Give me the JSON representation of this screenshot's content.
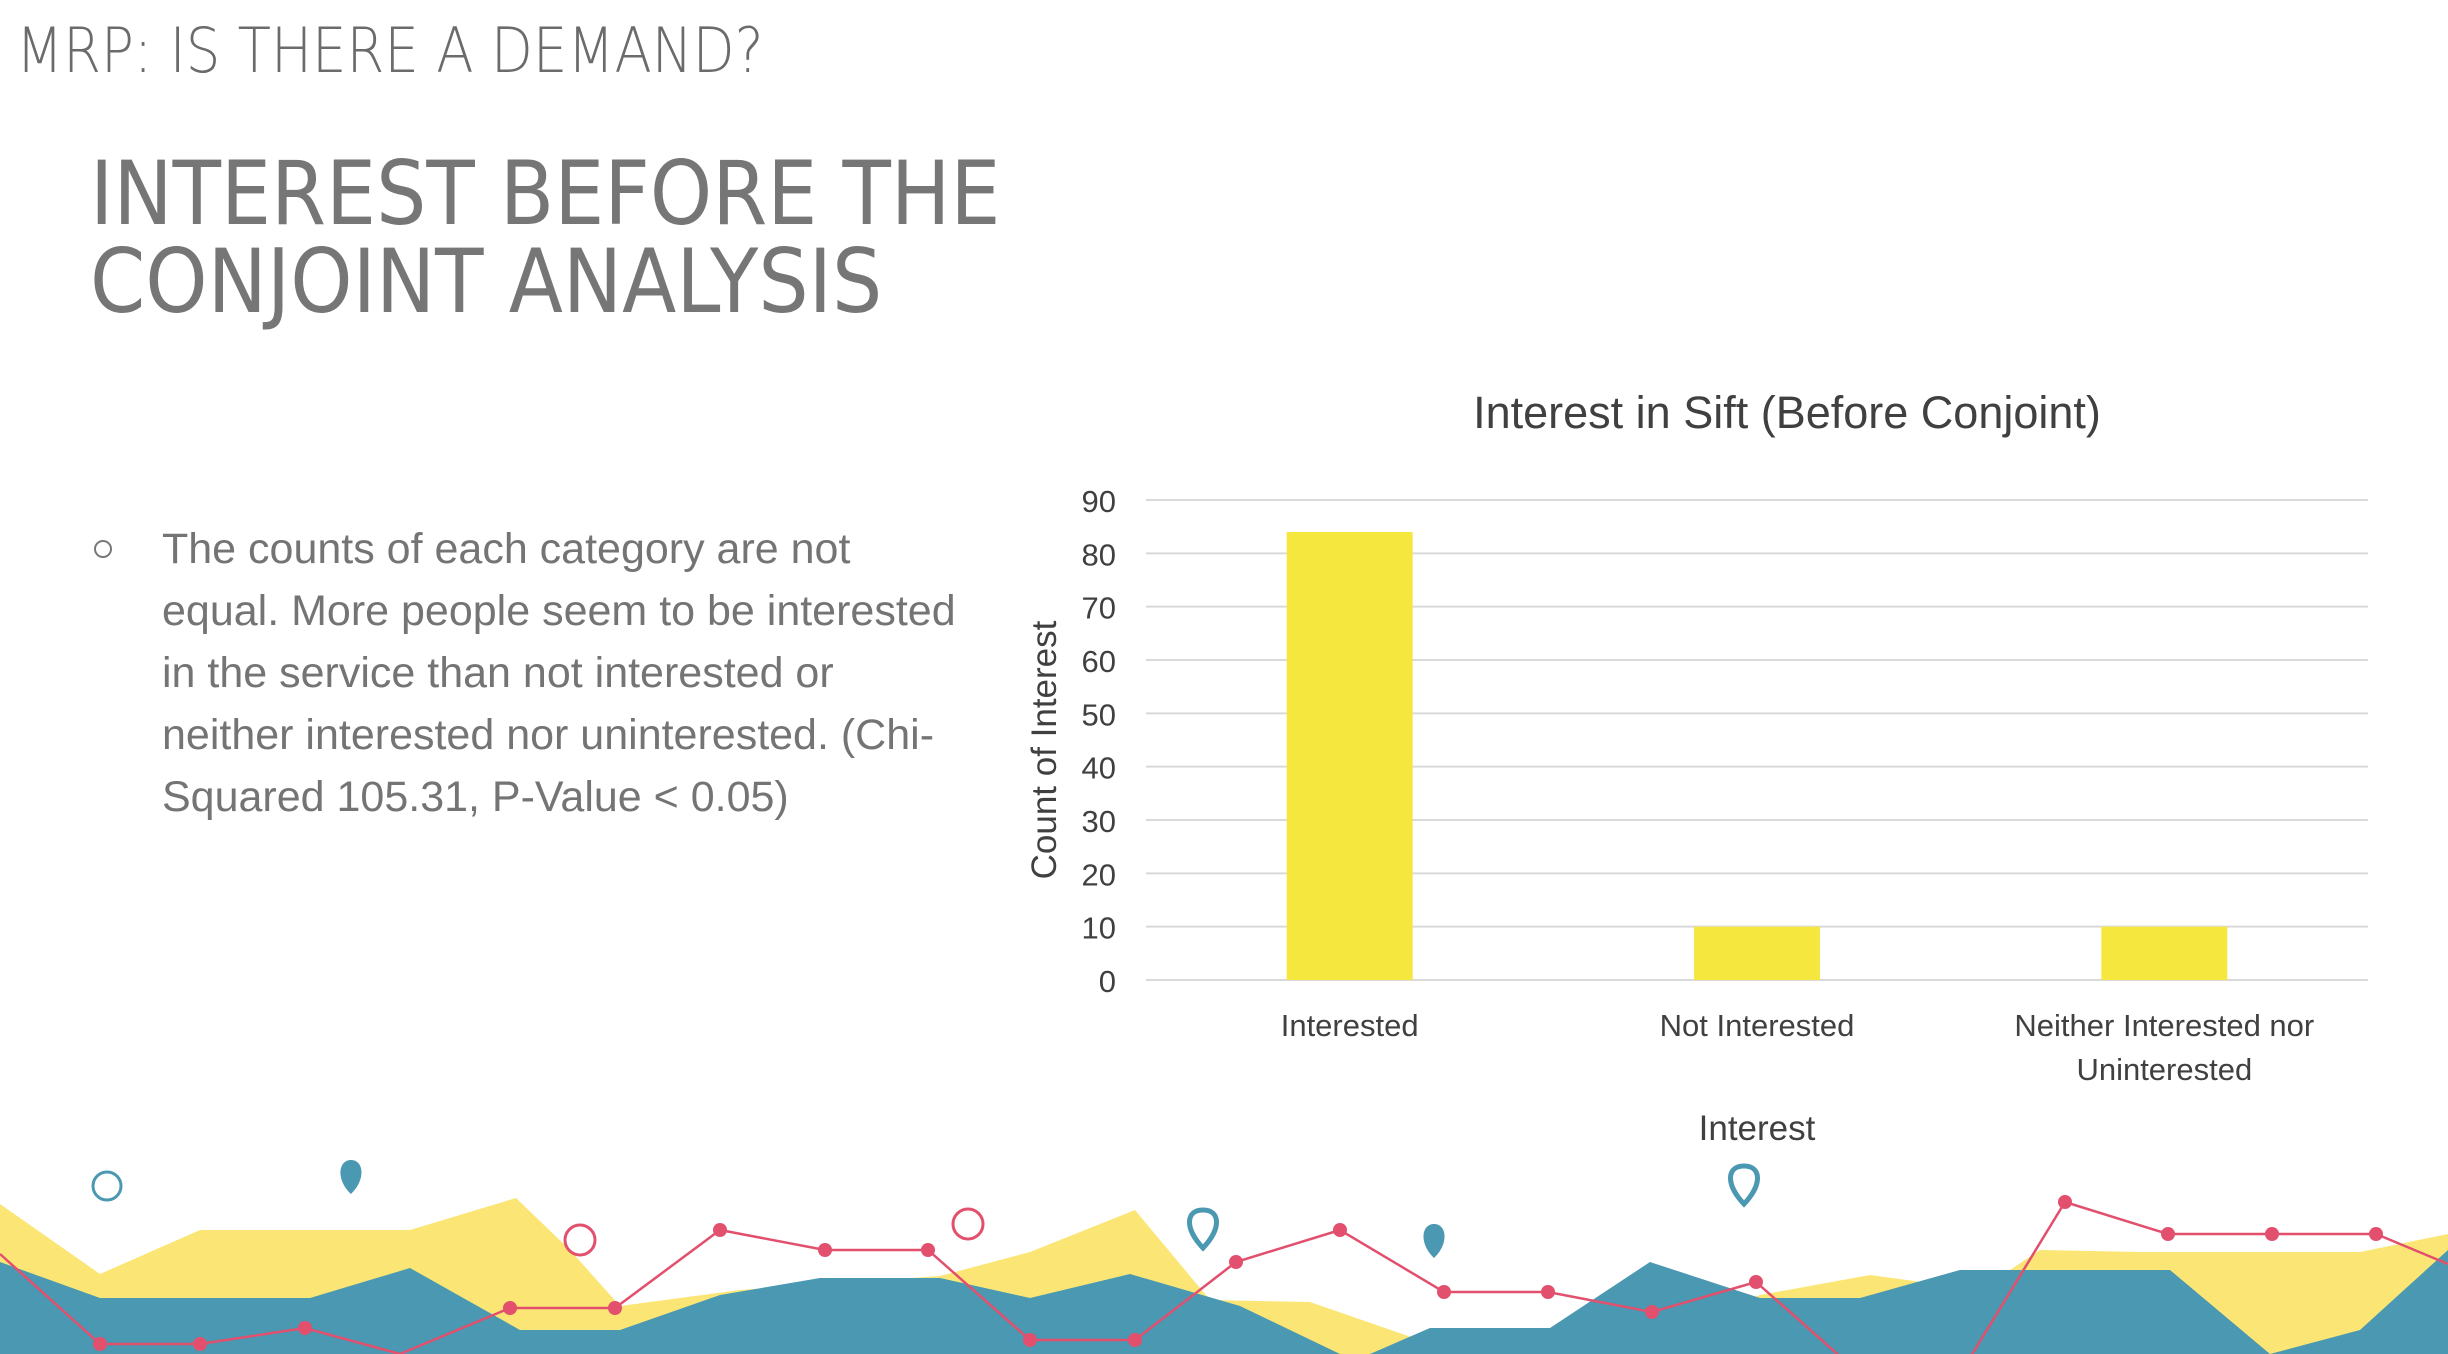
{
  "slide": {
    "kicker": "MRP: IS THERE A DEMAND?",
    "title_line1": "INTEREST BEFORE THE",
    "title_line2": "CONJOINT ANALYSIS",
    "bullet": "The counts of each category are not equal. More people seem to be interested in the service than not interested or neither interested nor uninterested. (Chi-Squared 105.31, P-Value < 0.05)"
  },
  "colors": {
    "bar": "#f5e73d",
    "grid": "#d9d9d9",
    "text": "#404040",
    "deco_yellow": "#fbe675",
    "deco_teal": "#4a98b1",
    "deco_pink": "#e2506e"
  },
  "chart_data": {
    "type": "bar",
    "title": "Interest in Sift (Before Conjoint)",
    "xlabel": "Interest",
    "ylabel": "Count of Interest",
    "categories": [
      [
        "Interested"
      ],
      [
        "Not Interested"
      ],
      [
        "Neither Interested nor",
        "Uninterested"
      ]
    ],
    "values": [
      84,
      10,
      10
    ],
    "ylim": [
      0,
      90
    ],
    "yticks": [
      0,
      10,
      20,
      30,
      40,
      50,
      60,
      70,
      80,
      90
    ],
    "grid": true
  }
}
